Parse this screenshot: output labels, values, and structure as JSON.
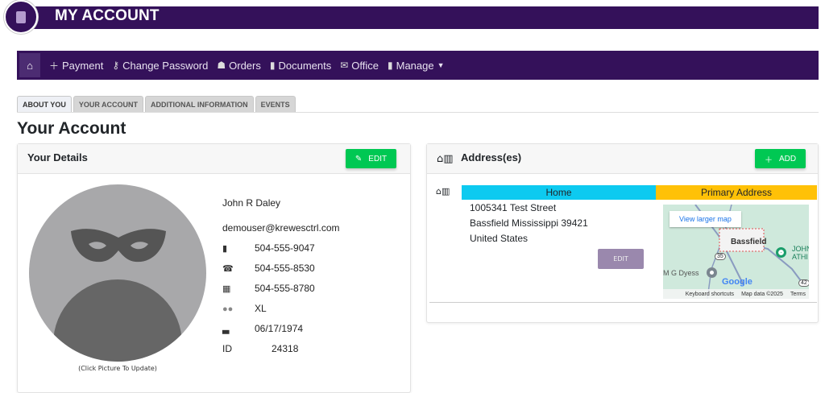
{
  "header": {
    "title": "MY ACCOUNT",
    "icon": "account-document-icon"
  },
  "nav": {
    "items": [
      {
        "label": "Payment",
        "icon": "plus-icon"
      },
      {
        "label": "Change Password",
        "icon": "key-icon"
      },
      {
        "label": "Orders",
        "icon": "orders-icon"
      },
      {
        "label": "Documents",
        "icon": "document-icon"
      },
      {
        "label": "Office",
        "icon": "envelope-icon"
      },
      {
        "label": "Manage",
        "icon": "id-badge-icon"
      }
    ]
  },
  "tabs": [
    "ABOUT YOU",
    "YOUR ACCOUNT",
    "ADDITIONAL INFORMATION",
    "EVENTS"
  ],
  "page_title": "Your Account",
  "details": {
    "title": "Your Details",
    "edit_label": "EDIT",
    "caption": "(Click Picture To Update)",
    "name": "John R Daley",
    "email": "demouser@krewesctrl.com",
    "mobile": "504-555-9047",
    "home_phone": "504-555-8530",
    "work_phone": "504-555-8780",
    "size": "XL",
    "birthday": "06/17/1974",
    "id_label": "ID",
    "id": "24318"
  },
  "addresses": {
    "title": "Address(es)",
    "add_label": "ADD",
    "type": "Home",
    "primary": "Primary Address",
    "line1": "1005341 Test Street",
    "line2": "Bassfield Mississippi 39421",
    "line3": "United States",
    "edit_label": "EDIT",
    "map": {
      "link": "View larger map",
      "town": "Bassfield",
      "place1": "M G Dyess",
      "place2": "JOHN ATHI",
      "route1": "35",
      "route2": "42",
      "logo": "Google",
      "shortcuts": "Keyboard shortcuts",
      "mapdata": "Map data ©2025",
      "terms": "Terms"
    }
  },
  "colors": {
    "brand": "#34115a",
    "success": "#00c853",
    "info": "#0dcaf0",
    "warning": "#ffc107",
    "muted_button": "#9a88ad"
  }
}
